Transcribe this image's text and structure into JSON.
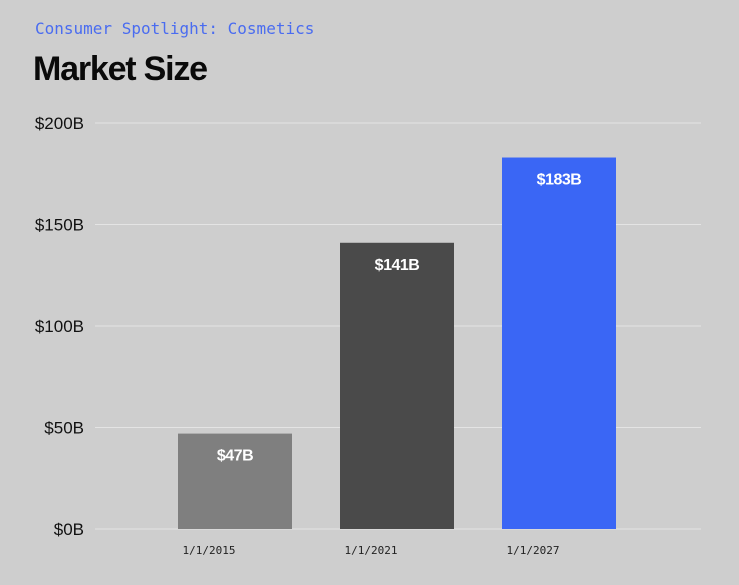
{
  "chart_data": {
    "type": "bar",
    "subtitle": "Consumer Spotlight: Cosmetics",
    "title": "Market Size",
    "categories": [
      "1/1/2015",
      "1/1/2021",
      "1/1/2027"
    ],
    "values": [
      47,
      141,
      183
    ],
    "data_labels": [
      "$47B",
      "$141B",
      "$183B"
    ],
    "bar_colors": [
      "#7f7f7f",
      "#4a4a4a",
      "#3a66f5"
    ],
    "ylim": [
      0,
      200
    ],
    "yticks": [
      0,
      50,
      100,
      150,
      200
    ],
    "ytick_labels": [
      "$0B",
      "$50B",
      "$100B",
      "$150B",
      "$200B"
    ],
    "xlabel": "",
    "ylabel": "",
    "grid": true,
    "legend": "none"
  },
  "colors": {
    "background": "#cecece",
    "gridline": "#e4e4e4",
    "subtitle": "#4a6cf0",
    "title": "#0a0a0a"
  }
}
